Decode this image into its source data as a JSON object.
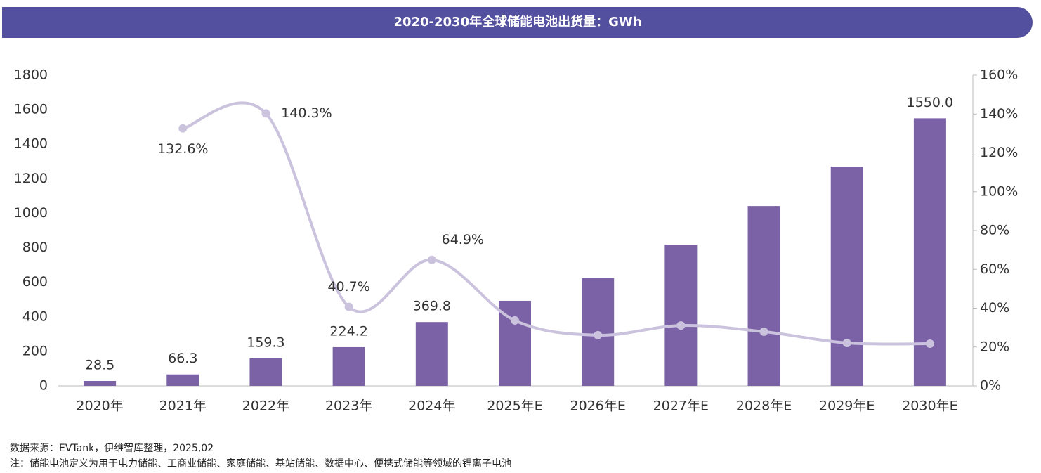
{
  "chart_data": {
    "type": "bar-line",
    "title": "2020-2030年全球储能电池出货量：GWh",
    "categories": [
      "2020年",
      "2021年",
      "2022年",
      "2023年",
      "2024年",
      "2025年E",
      "2026年E",
      "2027年E",
      "2028年E",
      "2029年E",
      "2030年E"
    ],
    "series": [
      {
        "type": "bar",
        "color": "#7b62a6",
        "values": [
          28.5,
          66.3,
          159.3,
          224.2,
          369.8,
          493,
          623,
          818,
          1042,
          1270,
          1550
        ],
        "value_labels": [
          "28.5",
          "66.3",
          "159.3",
          "224.2",
          "369.8",
          null,
          null,
          null,
          null,
          null,
          "1550.0"
        ]
      },
      {
        "type": "line",
        "axis": "y2",
        "color": "#cbc3de",
        "values": [
          null,
          132.6,
          140.3,
          40.7,
          64.9,
          33.7,
          26.1,
          31.1,
          27.9,
          22.1,
          21.7
        ],
        "value_labels": [
          null,
          "132.6%",
          "140.3%",
          "40.7%",
          "64.9%",
          null,
          null,
          null,
          null,
          null,
          null
        ]
      }
    ],
    "ylim": [
      0,
      1800
    ],
    "yticks": [
      0,
      200,
      400,
      600,
      800,
      1000,
      1200,
      1400,
      1600,
      1800
    ],
    "y2lim": [
      0,
      160
    ],
    "y2ticks": [
      {
        "value": 0,
        "label": "0%"
      },
      {
        "value": 20,
        "label": "20%"
      },
      {
        "value": 40,
        "label": "40%"
      },
      {
        "value": 60,
        "label": "60%"
      },
      {
        "value": 80,
        "label": "80%"
      },
      {
        "value": 100,
        "label": "100%"
      },
      {
        "value": 120,
        "label": "120%"
      },
      {
        "value": 140,
        "label": "140%"
      },
      {
        "value": 160,
        "label": "160%"
      }
    ],
    "source": "数据来源：EVTank，伊维智库整理，2025,02",
    "note": "注：储能电池定义为用于电力储能、工商业储能、家庭储能、基站储能、数据中心、便携式储能等领域的锂离子电池"
  }
}
